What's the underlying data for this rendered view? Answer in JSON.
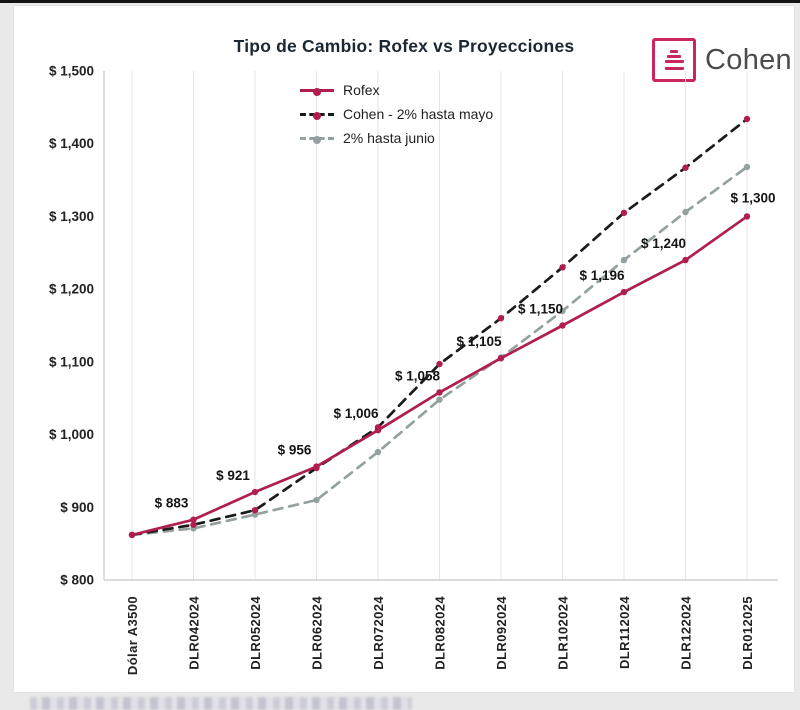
{
  "brand": {
    "name": "Cohen",
    "accent": "#c9265e"
  },
  "chart_data": {
    "type": "line",
    "title": "Tipo de Cambio: Rofex vs Proyecciones",
    "categories": [
      "Dólar A3500",
      "DLR042024",
      "DLR052024",
      "DLR062024",
      "DLR072024",
      "DLR082024",
      "DLR092024",
      "DLR102024",
      "DLR112024",
      "DLR122024",
      "DLR012025"
    ],
    "ylim": [
      800,
      1500
    ],
    "y_ticks": [
      800,
      900,
      1000,
      1100,
      1200,
      1300,
      1400,
      1500
    ],
    "y_tick_labels": [
      "$ 800",
      "$ 900",
      "$ 1,000",
      "$ 1,100",
      "$ 1,200",
      "$ 1,300",
      "$ 1,400",
      "$ 1,500"
    ],
    "grid": "vertical",
    "legend_position": "top-center-vertical",
    "series": [
      {
        "name": "Rofex",
        "color": "#b01e4e",
        "style": "solid",
        "values": [
          862,
          883,
          921,
          956,
          1006,
          1058,
          1105,
          1150,
          1196,
          1240,
          1300
        ],
        "point_labels": [
          "",
          "$ 883",
          "$ 921",
          "$ 956",
          "$ 1,006",
          "$ 1,058",
          "$ 1,105",
          "$ 1,150",
          "$ 1,196",
          "$ 1,240",
          "$ 1,300"
        ]
      },
      {
        "name": "Cohen - 2% hasta mayo",
        "color": "#1b1b1b",
        "marker_color": "#b01e4e",
        "style": "dashed",
        "values": [
          862,
          876,
          896,
          954,
          1010,
          1097,
          1160,
          1230,
          1305,
          1367,
          1434
        ]
      },
      {
        "name": "2% hasta junio",
        "color": "#95a1a1",
        "style": "dashed",
        "values": [
          862,
          871,
          890,
          910,
          976,
          1048,
          1106,
          1170,
          1240,
          1306,
          1368
        ]
      }
    ]
  }
}
